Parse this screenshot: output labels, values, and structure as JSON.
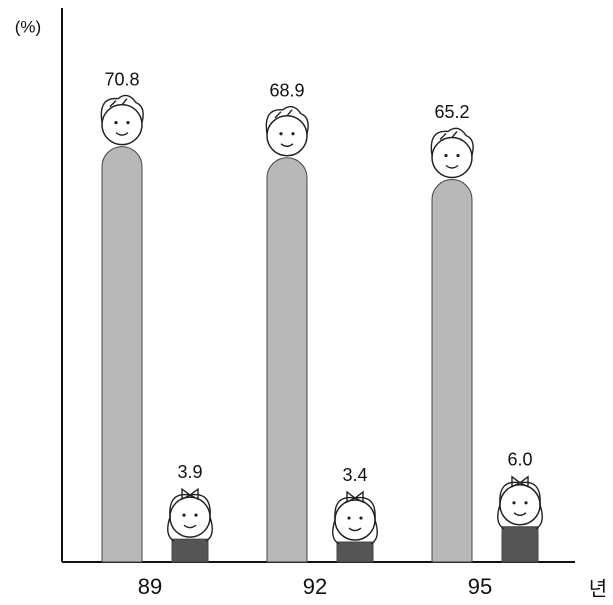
{
  "chart_data": {
    "type": "bar",
    "y_label": "(%)",
    "x_label": "년",
    "categories": [
      "89",
      "92",
      "95"
    ],
    "series": [
      {
        "color": "#b8b8b8",
        "values": [
          70.8,
          68.9,
          65.2
        ]
      },
      {
        "color": "#555555",
        "values": [
          3.9,
          3.4,
          6.0
        ],
        "value_labels": [
          "3.9",
          "3.4",
          "6.0"
        ]
      }
    ],
    "ylim": [
      0,
      75
    ]
  }
}
